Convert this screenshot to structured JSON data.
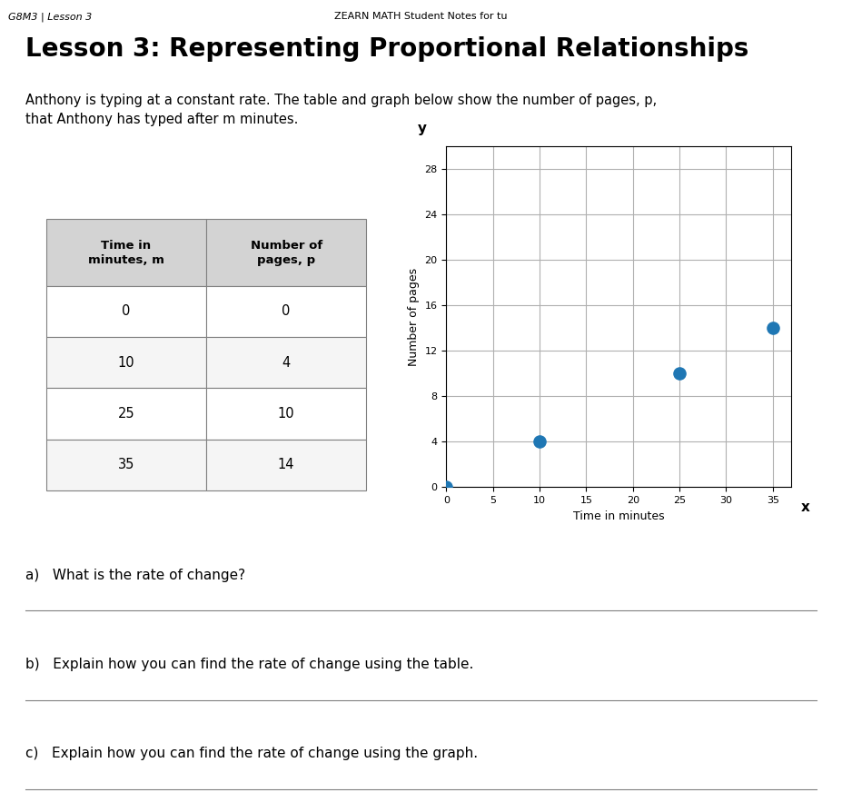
{
  "chart_data": {
    "type": "scatter",
    "title": "Lesson 3: Representing Proportional Relationships",
    "subtitle": "Anthony is typing at a constant rate. The table and graph below show the number of pages, p,\nthat Anthony has typed after m minutes.",
    "header": [
      "G8M3 | Lesson 3",
      "ZEARN MATH Student Notes for tu"
    ],
    "x": [
      0,
      10,
      25,
      35
    ],
    "values": [
      0,
      4,
      10,
      14
    ],
    "xlim": [
      0,
      37
    ],
    "ylim": [
      0,
      30
    ],
    "xticks": [
      0,
      5,
      10,
      15,
      20,
      25,
      30,
      35
    ],
    "yticks": [
      0,
      4,
      8,
      12,
      16,
      20,
      24,
      28
    ],
    "grid": true,
    "xlabel": "Time in minutes",
    "ylabel": "Number of pages",
    "axis_symbols": {
      "x": "x",
      "y": "y"
    },
    "table": {
      "headers": [
        "Time in\nminutes, m",
        "Number of\npages, p"
      ],
      "rows": [
        [
          0,
          0
        ],
        [
          10,
          4
        ],
        [
          25,
          10
        ],
        [
          35,
          14
        ]
      ]
    },
    "questions": [
      "a)   What is the rate of change?",
      "b)   Explain how you can find the rate of change using the table.",
      "c)   Explain how you can find the rate of change using the graph."
    ]
  }
}
